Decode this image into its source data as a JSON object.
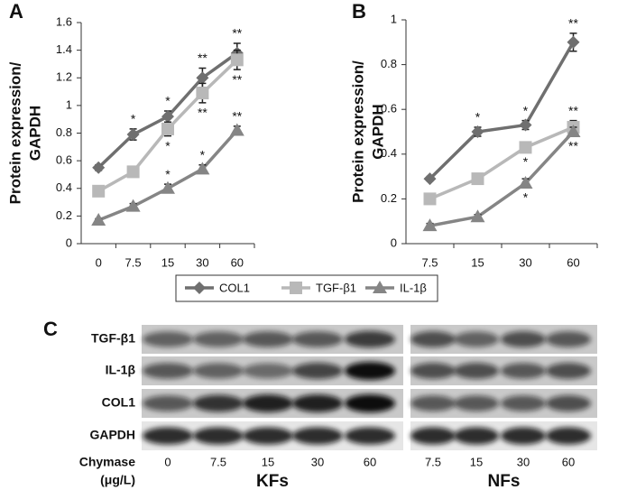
{
  "chart_data": [
    {
      "type": "line",
      "panel": "A",
      "ylabel": [
        "Protein expression/",
        "GAPDH"
      ],
      "categories": [
        "0",
        "7.5",
        "15",
        "30",
        "60"
      ],
      "ylim": [
        0,
        1.6
      ],
      "yticks": [
        0,
        0.2,
        0.4,
        0.6,
        0.8,
        1,
        1.2,
        1.4,
        1.6
      ],
      "series": [
        {
          "name": "COL1",
          "color": "#6f6f6f",
          "marker": "diamond",
          "values": [
            0.55,
            0.79,
            0.92,
            1.2,
            1.38
          ],
          "errors": [
            0.02,
            0.04,
            0.04,
            0.07,
            0.07
          ],
          "stars": [
            null,
            "*",
            "*",
            "**",
            "**"
          ]
        },
        {
          "name": "TGF-β1",
          "color": "#b8b8b8",
          "marker": "square",
          "values": [
            0.38,
            0.52,
            0.83,
            1.09,
            1.33
          ],
          "errors": [
            0.02,
            0.02,
            0.05,
            0.07,
            0.07
          ],
          "stars": [
            null,
            null,
            "*",
            "**",
            "**"
          ]
        },
        {
          "name": "IL-1β",
          "color": "#858585",
          "marker": "triangle",
          "values": [
            0.17,
            0.27,
            0.4,
            0.54,
            0.82
          ],
          "errors": [
            0.01,
            0.02,
            0.03,
            0.03,
            0.03
          ],
          "stars": [
            null,
            null,
            "*",
            "*",
            "**"
          ]
        }
      ]
    },
    {
      "type": "line",
      "panel": "B",
      "ylabel": [
        "Protein expression/",
        "GAPDH"
      ],
      "categories": [
        "7.5",
        "15",
        "30",
        "60"
      ],
      "ylim": [
        0,
        1
      ],
      "yticks": [
        0,
        0.2,
        0.4,
        0.6,
        0.8,
        1
      ],
      "series": [
        {
          "color": "#6f6f6f",
          "marker": "diamond",
          "values": [
            0.29,
            0.5,
            0.53,
            0.9
          ],
          "errors": [
            0.01,
            0.02,
            0.02,
            0.04
          ],
          "stars": [
            null,
            "*",
            "*",
            "**"
          ]
        },
        {
          "color": "#b8b8b8",
          "marker": "square",
          "values": [
            0.2,
            0.29,
            0.43,
            0.52
          ],
          "errors": [
            0.01,
            0.01,
            0.02,
            0.03
          ],
          "stars": [
            null,
            null,
            "*",
            "**"
          ]
        },
        {
          "color": "#858585",
          "marker": "triangle",
          "values": [
            0.08,
            0.12,
            0.27,
            0.5
          ],
          "errors": [
            0.01,
            0.01,
            0.02,
            0.02
          ],
          "stars": [
            null,
            null,
            "*",
            "**"
          ]
        }
      ]
    }
  ],
  "blot": {
    "panel": "C",
    "rows": [
      "TGF-β1",
      "IL-1β",
      "COL1",
      "GAPDH"
    ],
    "x_label": "Chymase",
    "x_unit": "(μg/L)",
    "groups": [
      {
        "label": "KFs",
        "lanes": [
          "0",
          "7.5",
          "15",
          "30",
          "60"
        ]
      },
      {
        "label": "NFs",
        "lanes": [
          "7.5",
          "15",
          "30",
          "60"
        ]
      }
    ]
  }
}
